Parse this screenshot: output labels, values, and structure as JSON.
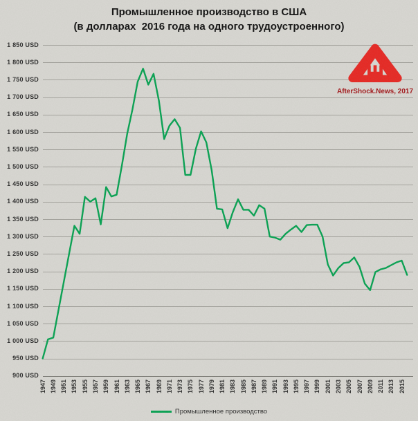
{
  "title": {
    "line1": "Промышленное производство в США",
    "line2": "(в долларах  2016 года на одного трудоустроенного)"
  },
  "legend": {
    "label": "Промышленное производство"
  },
  "watermark": {
    "credit": "AfterShock.News, 2017",
    "logo_color": "#e8231e"
  },
  "chart_data": {
    "type": "line",
    "title": "Промышленное производство в США (в долларах 2016 года на одного трудоустроенного)",
    "ylabel": "",
    "xlabel": "",
    "y_unit": "USD",
    "ylim": [
      900,
      1850
    ],
    "ytick_step": 50,
    "grid": "horizontal",
    "legend_position": "bottom",
    "line_color": "#00a14e",
    "xticks": [
      1947,
      1949,
      1951,
      1953,
      1955,
      1957,
      1959,
      1961,
      1963,
      1965,
      1967,
      1969,
      1971,
      1973,
      1975,
      1977,
      1979,
      1981,
      1983,
      1985,
      1987,
      1989,
      1991,
      1993,
      1995,
      1997,
      1999,
      2001,
      2003,
      2005,
      2007,
      2009,
      2011,
      2013,
      2015
    ],
    "x": [
      1947,
      1948,
      1949,
      1950,
      1951,
      1952,
      1953,
      1954,
      1955,
      1956,
      1957,
      1958,
      1959,
      1960,
      1961,
      1962,
      1963,
      1964,
      1965,
      1966,
      1967,
      1968,
      1969,
      1970,
      1971,
      1972,
      1973,
      1974,
      1975,
      1976,
      1977,
      1978,
      1979,
      1980,
      1981,
      1982,
      1983,
      1984,
      1985,
      1986,
      1987,
      1988,
      1989,
      1990,
      1991,
      1992,
      1993,
      1994,
      1995,
      1996,
      1997,
      1998,
      1999,
      2000,
      2001,
      2002,
      2003,
      2004,
      2005,
      2006,
      2007,
      2008,
      2009,
      2010,
      2011,
      2012,
      2013,
      2014,
      2015,
      2016
    ],
    "series": [
      {
        "name": "Промышленное производство",
        "color": "#00a14e",
        "values": [
          950,
          1005,
          1010,
          1090,
          1170,
          1250,
          1331,
          1308,
          1414,
          1400,
          1410,
          1335,
          1442,
          1415,
          1420,
          1505,
          1595,
          1665,
          1745,
          1782,
          1736,
          1767,
          1690,
          1580,
          1618,
          1637,
          1612,
          1477,
          1477,
          1552,
          1602,
          1570,
          1490,
          1380,
          1378,
          1324,
          1370,
          1407,
          1377,
          1377,
          1360,
          1390,
          1380,
          1300,
          1297,
          1291,
          1308,
          1320,
          1331,
          1313,
          1333,
          1334,
          1334,
          1300,
          1220,
          1188,
          1210,
          1224,
          1226,
          1240,
          1213,
          1165,
          1146,
          1198,
          1206,
          1210,
          1218,
          1226,
          1231,
          1190
        ]
      }
    ]
  }
}
